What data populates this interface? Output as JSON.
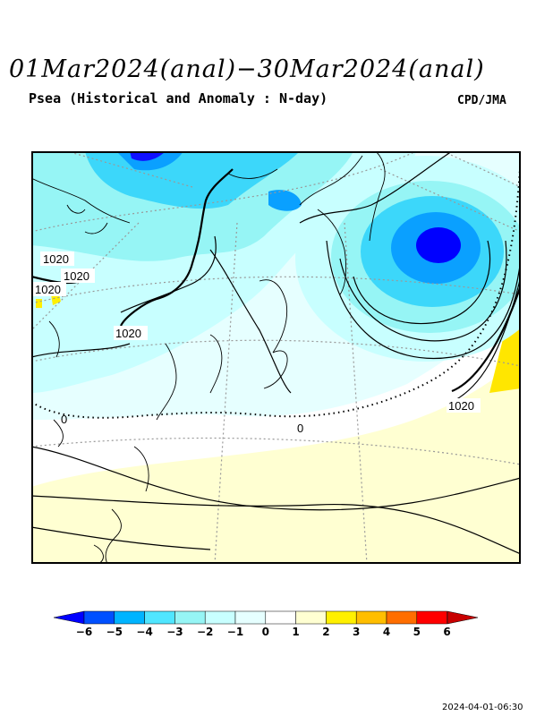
{
  "header": {
    "title": "01Mar2024(anal)−30Mar2024(anal)",
    "subtitle": "Psea (Historical and Anomaly : N-day)",
    "agency": "CPD/JMA"
  },
  "map": {
    "contour_labels": [
      "1020",
      "1020",
      "1020",
      "1020",
      "1020"
    ],
    "zero_label": "0",
    "colors": {
      "frame": "#000000",
      "land_line": "#000000",
      "graticule": "#999999",
      "anomaly_pos1": "#ffffd2",
      "anomaly_pos2": "#fff000",
      "anomaly_neg1": "#e6ffff",
      "anomaly_neg2": "#c8ffff",
      "anomaly_neg3": "#96f5f5",
      "anomaly_neg4": "#3cd7fa",
      "anomaly_neg5": "#0aa0ff",
      "anomaly_neg6": "#0000ff"
    }
  },
  "colorbar": {
    "ticks": [
      "−6",
      "−5",
      "−4",
      "−3",
      "−2",
      "−1",
      "0",
      "1",
      "2",
      "3",
      "4",
      "5",
      "6"
    ],
    "colors": [
      "#0000ff",
      "#0050ff",
      "#00b4ff",
      "#50e6ff",
      "#96f5f5",
      "#c8ffff",
      "#e6ffff",
      "#ffffff",
      "#ffffd2",
      "#fff000",
      "#ffbe00",
      "#ff6e00",
      "#ff0000",
      "#d20000",
      "#a00000"
    ]
  },
  "footer": {
    "timestamp": "2024-04-01-06:30"
  }
}
